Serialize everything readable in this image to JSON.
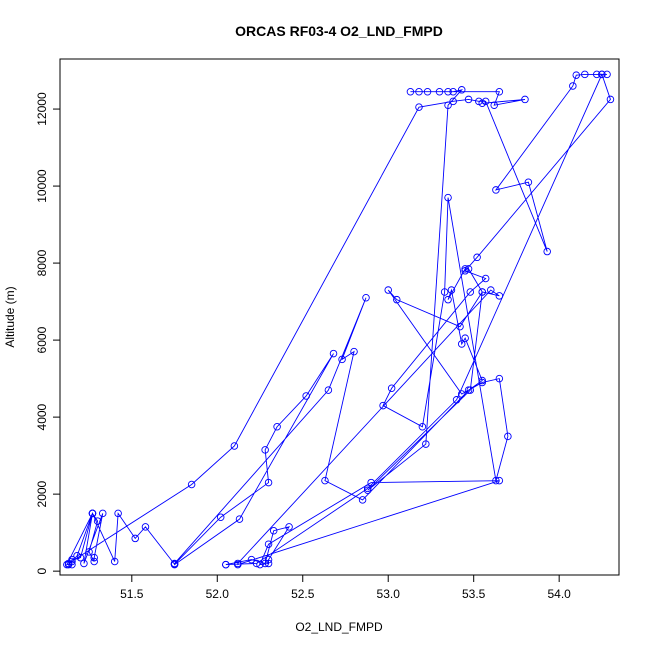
{
  "chart_data": {
    "type": "scatter",
    "title": "ORCAS RF03-4 O2_LND_FMPD",
    "xlabel": "O2_LND_FMPD",
    "ylabel": "Altitude (m)",
    "xlim": [
      51.08,
      54.35
    ],
    "ylim": [
      -100,
      13300
    ],
    "xticks": [
      51.5,
      52.0,
      52.5,
      53.0,
      53.5,
      54.0
    ],
    "xtick_labels": [
      "51.5",
      "52.0",
      "52.5",
      "53.0",
      "53.5",
      "54.0"
    ],
    "yticks": [
      0,
      2000,
      4000,
      6000,
      8000,
      10000,
      12000
    ],
    "ytick_labels": [
      "0",
      "2000",
      "4000",
      "6000",
      "8000",
      "10000",
      "12000"
    ],
    "grid": false,
    "series": [
      {
        "color": "#0000ff",
        "style": "line-with-open-circles",
        "points": [
          [
            54.28,
            12900
          ],
          [
            54.25,
            12900
          ],
          [
            54.22,
            12900
          ],
          [
            54.15,
            12900
          ],
          [
            54.1,
            12880
          ],
          [
            54.08,
            12600
          ],
          [
            53.63,
            9900
          ],
          [
            53.82,
            10100
          ],
          [
            53.93,
            8300
          ],
          [
            53.57,
            12200
          ],
          [
            53.53,
            12200
          ],
          [
            53.47,
            12250
          ],
          [
            53.38,
            12200
          ],
          [
            53.18,
            12050
          ],
          [
            52.1,
            3250
          ],
          [
            51.85,
            2250
          ],
          [
            51.13,
            200
          ],
          [
            51.15,
            300
          ],
          [
            51.2,
            350
          ],
          [
            51.27,
            1500
          ],
          [
            51.3,
            1300
          ],
          [
            51.25,
            500
          ],
          [
            51.28,
            250
          ],
          [
            51.28,
            350
          ],
          [
            51.33,
            1500
          ],
          [
            51.22,
            200
          ],
          [
            51.27,
            1500
          ],
          [
            51.18,
            400
          ],
          [
            51.15,
            250
          ],
          [
            51.13,
            170
          ],
          [
            51.15,
            170
          ],
          [
            51.12,
            170
          ],
          [
            51.27,
            1500
          ],
          [
            51.4,
            250
          ],
          [
            51.42,
            1500
          ],
          [
            51.52,
            850
          ],
          [
            51.58,
            1150
          ],
          [
            51.75,
            180
          ],
          [
            51.75,
            180
          ],
          [
            52.02,
            1400
          ],
          [
            52.3,
            2300
          ],
          [
            52.28,
            3150
          ],
          [
            52.35,
            3750
          ],
          [
            52.52,
            4550
          ],
          [
            52.68,
            5650
          ],
          [
            52.13,
            1350
          ],
          [
            51.75,
            170
          ],
          [
            51.75,
            200
          ],
          [
            52.65,
            4700
          ],
          [
            52.87,
            7100
          ],
          [
            52.73,
            5500
          ],
          [
            52.8,
            5700
          ],
          [
            52.63,
            2350
          ],
          [
            52.85,
            1850
          ],
          [
            53.47,
            4700
          ],
          [
            53.55,
            4950
          ],
          [
            53.45,
            6050
          ],
          [
            53.43,
            5900
          ],
          [
            53.37,
            7300
          ],
          [
            53.35,
            7050
          ],
          [
            53.45,
            7850
          ],
          [
            53.47,
            7850
          ],
          [
            53.55,
            7250
          ],
          [
            53.42,
            6350
          ],
          [
            53.05,
            7050
          ],
          [
            53.0,
            7300
          ],
          [
            53.43,
            4600
          ],
          [
            53.55,
            4900
          ],
          [
            53.65,
            5000
          ],
          [
            53.7,
            3500
          ],
          [
            53.63,
            2350
          ],
          [
            53.35,
            9700
          ],
          [
            53.33,
            7250
          ],
          [
            53.2,
            3750
          ],
          [
            52.97,
            4300
          ],
          [
            53.02,
            4750
          ],
          [
            53.48,
            7250
          ],
          [
            53.57,
            7600
          ],
          [
            53.45,
            7800
          ],
          [
            53.52,
            8150
          ],
          [
            54.3,
            12250
          ],
          [
            54.25,
            12900
          ],
          [
            53.4,
            4450
          ],
          [
            52.88,
            2150
          ],
          [
            52.23,
            200
          ],
          [
            52.05,
            170
          ],
          [
            52.05,
            170
          ],
          [
            52.2,
            300
          ],
          [
            52.28,
            200
          ],
          [
            52.33,
            1050
          ],
          [
            52.42,
            1150
          ],
          [
            52.3,
            300
          ],
          [
            52.3,
            200
          ],
          [
            52.25,
            170
          ],
          [
            52.3,
            700
          ],
          [
            52.9,
            2300
          ],
          [
            53.65,
            2350
          ],
          [
            52.12,
            170
          ],
          [
            52.12,
            200
          ],
          [
            53.6,
            7300
          ],
          [
            53.65,
            7150
          ],
          [
            53.55,
            7250
          ],
          [
            53.48,
            4700
          ],
          [
            52.88,
            2100
          ],
          [
            53.22,
            3300
          ],
          [
            53.35,
            12100
          ],
          [
            53.43,
            12500
          ],
          [
            53.38,
            12450
          ],
          [
            53.35,
            12450
          ],
          [
            53.3,
            12450
          ],
          [
            53.23,
            12450
          ],
          [
            53.18,
            12450
          ],
          [
            53.13,
            12450
          ],
          [
            53.65,
            12450
          ],
          [
            53.62,
            12100
          ],
          [
            53.8,
            12250
          ],
          [
            53.55,
            12150
          ]
        ]
      }
    ]
  }
}
